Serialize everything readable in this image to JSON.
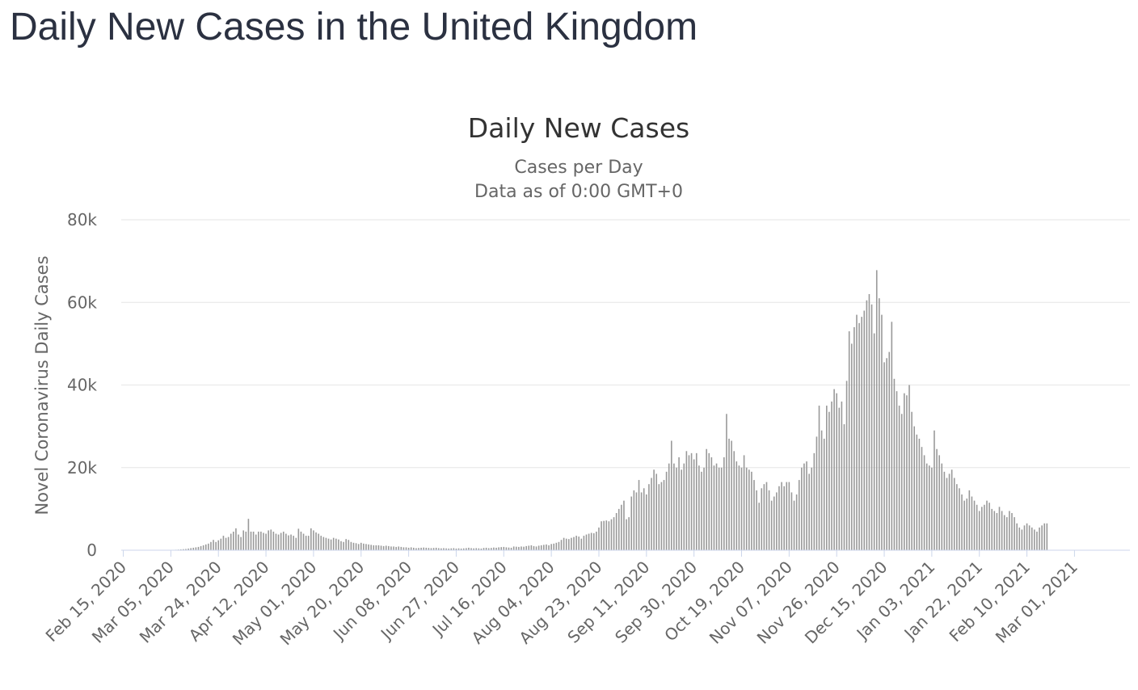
{
  "page": {
    "title": "Daily New Cases in the United Kingdom"
  },
  "chart_data": {
    "type": "bar",
    "title": "Daily New Cases",
    "subtitle": "Cases per Day",
    "subtitle2": "Data as of 0:00 GMT+0",
    "ylabel": "Novel Coronavirus Daily Cases",
    "xlabel": "",
    "ylim": [
      0,
      80000
    ],
    "y_ticks": [
      {
        "value": 0,
        "label": "0"
      },
      {
        "value": 20000,
        "label": "20k"
      },
      {
        "value": 40000,
        "label": "40k"
      },
      {
        "value": 60000,
        "label": "60k"
      },
      {
        "value": 80000,
        "label": "80k"
      }
    ],
    "grid": true,
    "legend": "none",
    "bar_color": "#999999",
    "x_tick_labels": [
      "Feb 15, 2020",
      "Mar 05, 2020",
      "Mar 24, 2020",
      "Apr 12, 2020",
      "May 01, 2020",
      "May 20, 2020",
      "Jun 08, 2020",
      "Jun 27, 2020",
      "Jul 16, 2020",
      "Aug 04, 2020",
      "Aug 23, 2020",
      "Sep 11, 2020",
      "Sep 30, 2020",
      "Oct 19, 2020",
      "Nov 07, 2020",
      "Nov 26, 2020",
      "Dec 15, 2020",
      "Jan 03, 2021",
      "Jan 22, 2021",
      "Feb 10, 2021",
      "Mar 01, 2021"
    ],
    "series": [
      {
        "x_start": "Feb 15, 2020",
        "x_step_days": 1,
        "values": [
          0,
          0,
          0,
          0,
          0,
          0,
          0,
          0,
          0,
          0,
          0,
          0,
          0,
          10,
          20,
          30,
          40,
          50,
          60,
          80,
          100,
          120,
          150,
          200,
          250,
          300,
          400,
          500,
          600,
          700,
          800,
          1000,
          1200,
          1400,
          1600,
          2000,
          2500,
          2000,
          2400,
          2800,
          3500,
          3000,
          3200,
          4000,
          4500,
          5300,
          3800,
          3200,
          4800,
          4500,
          7600,
          4500,
          4500,
          3800,
          4500,
          4500,
          4200,
          4000,
          4800,
          5000,
          4500,
          4000,
          3800,
          4200,
          4500,
          4000,
          3600,
          3800,
          3500,
          3000,
          5200,
          4500,
          4000,
          3500,
          3500,
          5300,
          4800,
          4300,
          4000,
          3500,
          3200,
          3000,
          2800,
          2600,
          3000,
          2800,
          2600,
          2200,
          2000,
          2700,
          2500,
          2000,
          1800,
          1700,
          1500,
          1800,
          1600,
          1500,
          1400,
          1300,
          1200,
          1200,
          1200,
          1100,
          1000,
          1100,
          1000,
          900,
          900,
          800,
          900,
          800,
          700,
          700,
          600,
          700,
          600,
          500,
          550,
          600,
          650,
          600,
          550,
          500,
          550,
          600,
          500,
          450,
          500,
          450,
          400,
          450,
          500,
          400,
          450,
          400,
          450,
          500,
          600,
          500,
          450,
          500,
          450,
          400,
          550,
          600,
          500,
          550,
          650,
          600,
          700,
          750,
          800,
          700,
          650,
          600,
          900,
          850,
          800,
          900,
          850,
          1000,
          1100,
          1200,
          1000,
          900,
          1100,
          1200,
          1300,
          1400,
          1200,
          1500,
          1600,
          1800,
          2000,
          2500,
          3000,
          2800,
          2700,
          3000,
          3200,
          3500,
          3300,
          2800,
          3500,
          3800,
          4000,
          4200,
          4100,
          4500,
          5500,
          7000,
          7100,
          7200,
          7000,
          7500,
          8000,
          9000,
          10000,
          11000,
          12000,
          7500,
          8000,
          13000,
          14500,
          14000,
          17000,
          14000,
          15000,
          13500,
          16000,
          17500,
          19500,
          18500,
          16000,
          16500,
          17000,
          19000,
          21000,
          26500,
          21000,
          20000,
          22500,
          19500,
          21000,
          24000,
          23000,
          23500,
          22000,
          23500,
          20500,
          19000,
          20000,
          24500,
          23500,
          22500,
          20500,
          21000,
          20000,
          20000,
          22500,
          33000,
          27000,
          26500,
          24000,
          21500,
          20500,
          20000,
          23000,
          20000,
          19500,
          19000,
          17000,
          14500,
          11500,
          15000,
          16000,
          16500,
          14500,
          12000,
          13000,
          14000,
          15500,
          16500,
          15500,
          16500,
          16500,
          14000,
          12000,
          13500,
          17000,
          20000,
          21000,
          21500,
          18500,
          20000,
          23500,
          27500,
          35000,
          29000,
          27000,
          35000,
          33500,
          36000,
          39000,
          38000,
          34500,
          36000,
          30500,
          41000,
          53000,
          50000,
          54000,
          57000,
          55000,
          56500,
          58000,
          60500,
          62000,
          59500,
          52500,
          67800,
          61000,
          57000,
          45500,
          46500,
          48000,
          55300,
          41500,
          38500,
          35000,
          33000,
          38000,
          37500,
          40000,
          33500,
          30000,
          28000,
          27000,
          25000,
          23000,
          21000,
          20500,
          20000,
          29000,
          24500,
          23000,
          21000,
          19000,
          17500,
          18500,
          19500,
          17500,
          16000,
          15000,
          13500,
          12000,
          12500,
          14500,
          13000,
          12000,
          11000,
          9500,
          10500,
          11000,
          12000,
          11500,
          10000,
          9500,
          9000,
          10500,
          9500,
          8500,
          8000,
          9500,
          9000,
          8000,
          6500,
          5500,
          5000,
          6000,
          6500,
          6000,
          5500,
          5000,
          4500,
          5500,
          6000,
          6500,
          6500
        ]
      }
    ]
  }
}
